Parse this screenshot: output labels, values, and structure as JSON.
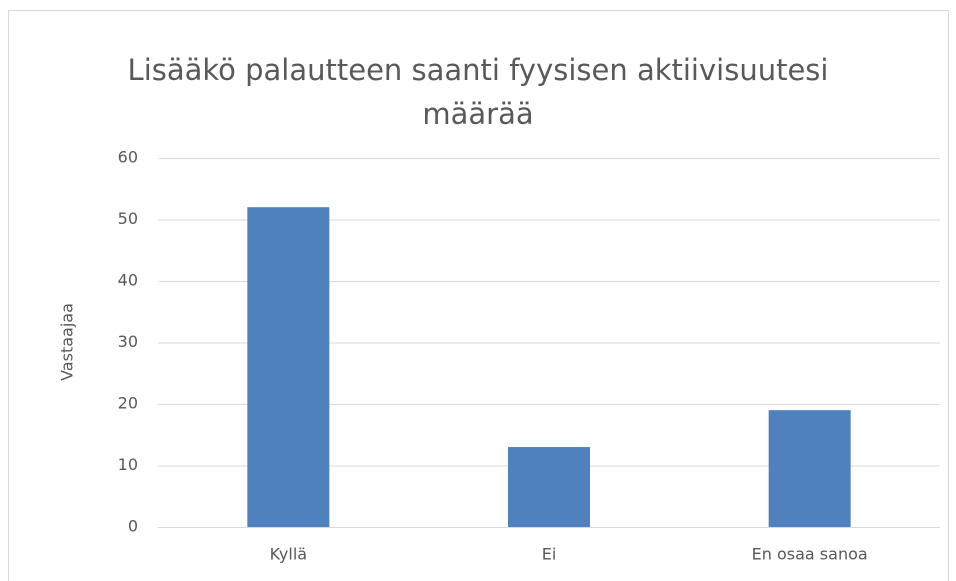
{
  "chart_data": {
    "type": "bar",
    "title": "Lisääkö palautteen saanti fyysisen aktiivisuutesi määrää",
    "y_label": "Vastaajaa",
    "categories": [
      "Kyllä",
      "Ei",
      "En osaa sanoa"
    ],
    "values": [
      52,
      13,
      19
    ],
    "color": "#4f81bd",
    "ylim": [
      0,
      60
    ],
    "yticks": [
      0,
      10,
      20,
      30,
      40,
      50,
      60
    ],
    "grid": true
  }
}
